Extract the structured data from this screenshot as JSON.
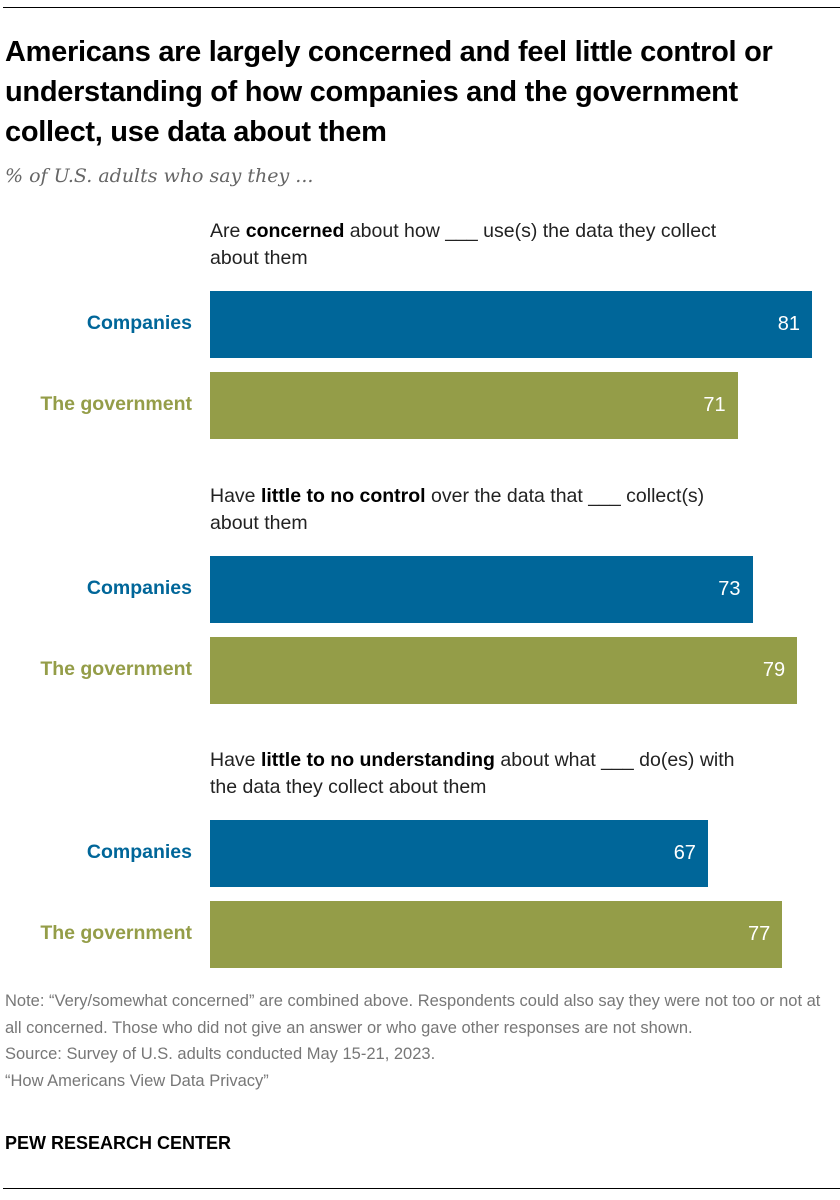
{
  "title": "Americans are largely concerned and feel little control or understanding of how companies and the government collect, use data about them",
  "subtitle": "% of U.S. adults who say they ...",
  "chart_data": {
    "type": "bar",
    "orientation": "horizontal",
    "title": "Americans are largely concerned and feel little control or understanding of how companies and the government collect, use data about them",
    "subtitle": "% of U.S. adults who say they ...",
    "xlim": [
      0,
      100
    ],
    "grid": false,
    "colors": {
      "Companies": "#006699",
      "The government": "#949D48"
    },
    "groups": [
      {
        "label_pre": "Are ",
        "label_bold": "concerned",
        "label_post": " about how ___ use(s) the data they collect about them",
        "bars": [
          {
            "category": "Companies",
            "value": 81
          },
          {
            "category": "The government",
            "value": 71
          }
        ]
      },
      {
        "label_pre": "Have ",
        "label_bold": "little to no control",
        "label_post": " over the data that ___ collect(s) about them",
        "bars": [
          {
            "category": "Companies",
            "value": 73
          },
          {
            "category": "The government",
            "value": 79
          }
        ]
      },
      {
        "label_pre": "Have ",
        "label_bold": "little to no understanding",
        "label_post": " about what ___ do(es) with the data they collect about them",
        "bars": [
          {
            "category": "Companies",
            "value": 67
          },
          {
            "category": "The government",
            "value": 77
          }
        ]
      }
    ]
  },
  "notes": {
    "note": "Note: “Very/somewhat concerned” are combined above. Respondents could also say they were not too or not at all concerned. Those who did not give an answer or who gave other responses are not shown.",
    "source": "Source: Survey of U.S. adults conducted May 15-21, 2023.",
    "report": "“How Americans View Data Privacy”"
  },
  "brand": "PEW RESEARCH CENTER"
}
